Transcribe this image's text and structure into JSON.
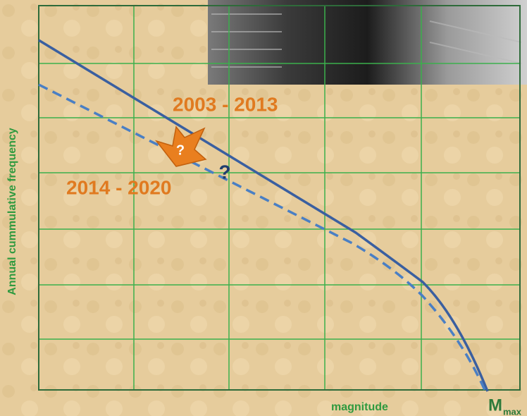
{
  "diagram": {
    "y_axis_label": "Annual cummulative frequency",
    "x_axis_label": "magnitude",
    "mmax": {
      "main": "M",
      "sub": "max"
    },
    "curves": [
      {
        "label": "2003 - 2013"
      },
      {
        "label": "2014 - 2020"
      }
    ],
    "arrow_question": "?",
    "curve_question": "?"
  }
}
